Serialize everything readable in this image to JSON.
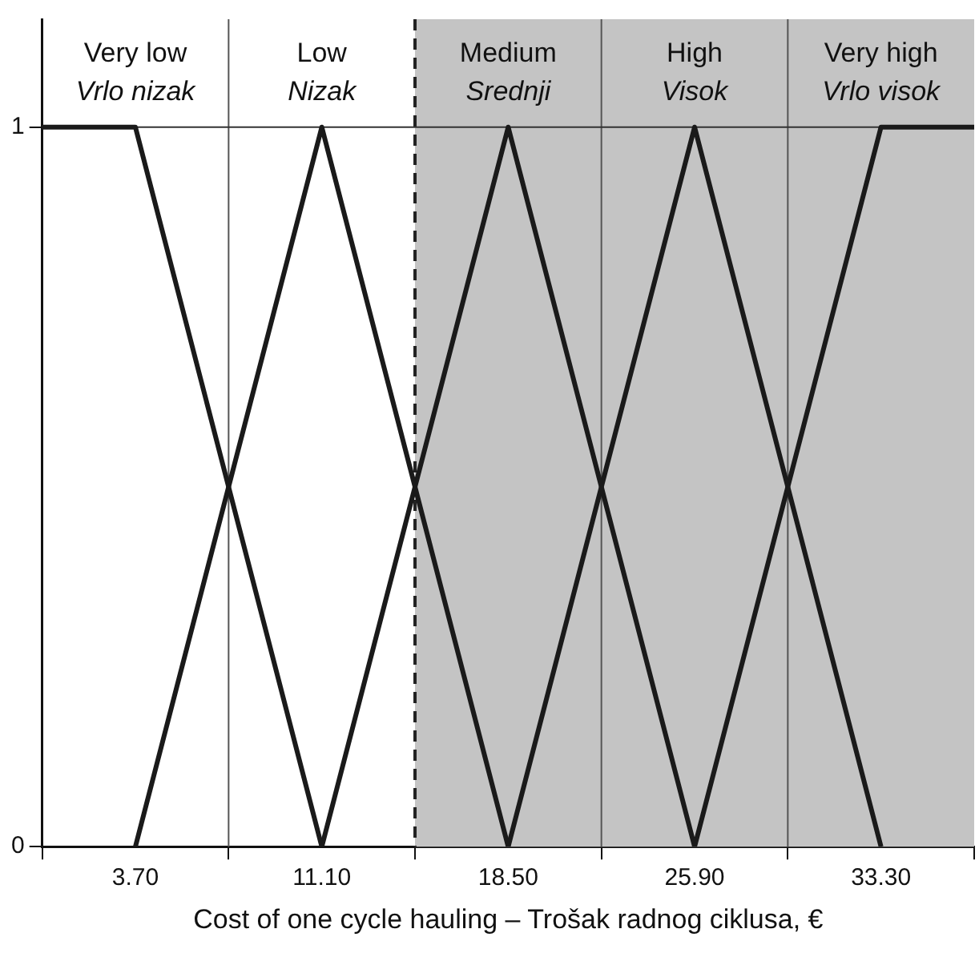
{
  "chart_data": {
    "type": "line",
    "xlabel": "Cost of one cycle hauling – Trošak radnog ciklusa, €",
    "xlim": [
      0,
      37
    ],
    "ylim": [
      0,
      1.15
    ],
    "xticks": [
      {
        "value": 0,
        "label": null
      },
      {
        "value": 3.7,
        "label": "3.70"
      },
      {
        "value": 7.4,
        "label": null
      },
      {
        "value": 11.1,
        "label": "11.10"
      },
      {
        "value": 14.8,
        "label": null
      },
      {
        "value": 18.5,
        "label": "18.50"
      },
      {
        "value": 22.2,
        "label": null
      },
      {
        "value": 25.9,
        "label": "25.90"
      },
      {
        "value": 29.6,
        "label": null
      },
      {
        "value": 33.3,
        "label": "33.30"
      },
      {
        "value": 37,
        "label": null
      }
    ],
    "yticks": [
      0,
      1
    ],
    "series": [
      {
        "name": "Very low\nVrlo nizak",
        "color": "#1a1a1a",
        "x": [
          0,
          3.7,
          11.1
        ],
        "values": [
          1,
          1,
          0
        ]
      },
      {
        "name": "Low\nNizak",
        "color": "#1a1a1a",
        "x": [
          3.7,
          11.1,
          18.5
        ],
        "values": [
          0,
          1,
          0
        ]
      },
      {
        "name": "Medium\nSrednji",
        "color": "#1a1a1a",
        "x": [
          11.1,
          18.5,
          25.9
        ],
        "values": [
          0,
          1,
          0
        ]
      },
      {
        "name": "High\nVisok",
        "color": "#1a1a1a",
        "x": [
          18.5,
          25.9,
          33.3
        ],
        "values": [
          0,
          1,
          0
        ]
      },
      {
        "name": "Very high\nVrlo visok",
        "color": "#1a1a1a",
        "x": [
          25.9,
          33.3,
          37
        ],
        "values": [
          0,
          1,
          1
        ]
      }
    ],
    "bands": [
      {
        "axis": "x",
        "from": 14.8,
        "to": 37,
        "color": "#c4c4c4"
      }
    ],
    "ref_lines": [
      {
        "axis": "x",
        "value": 7.4,
        "color": "#555555",
        "line_style": "solid"
      },
      {
        "axis": "x",
        "value": 14.8,
        "color": "#222222",
        "line_style": "dashed"
      },
      {
        "axis": "x",
        "value": 22.2,
        "color": "#555555",
        "line_style": "solid"
      },
      {
        "axis": "x",
        "value": 29.6,
        "color": "#555555",
        "line_style": "solid"
      },
      {
        "axis": "y",
        "value": 1,
        "color": "#333333",
        "line_style": "solid"
      }
    ]
  }
}
